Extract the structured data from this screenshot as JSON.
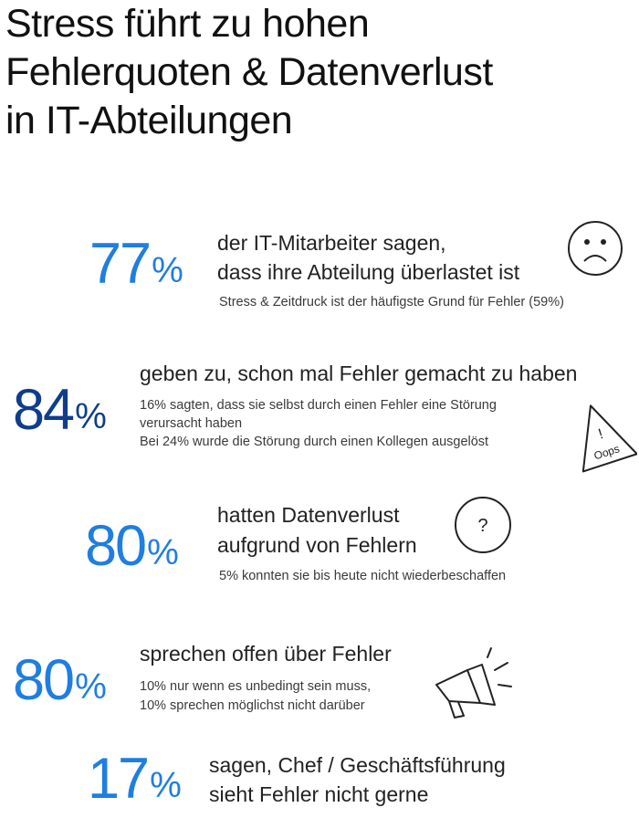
{
  "title": {
    "line1": "Stress führt zu hohen",
    "line2": "Fehlerquoten & Datenverlust",
    "line3": "in IT-Abteilungen"
  },
  "colors": {
    "blue": "#1f7ee0",
    "navy": "#0f3d8c",
    "text": "#222222"
  },
  "stats": [
    {
      "number": "77",
      "sign": "%",
      "headline": [
        "der IT-Mitarbeiter sagen,",
        "dass ihre Abteilung überlastet ist"
      ],
      "details": [
        "Stress & Zeitdruck ist der häufigste Grund für Fehler (59%)"
      ],
      "icon": "sad-face-icon"
    },
    {
      "number": "84",
      "sign": "%",
      "headline": [
        "geben zu, schon mal Fehler gemacht zu haben"
      ],
      "details": [
        "16% sagten, dass sie selbst durch einen Fehler eine Störung",
        "verursacht haben",
        "Bei 24% wurde die Störung durch einen Kollegen ausgelöst"
      ],
      "icon": "warning-triangle-icon",
      "icon_text": "Oops",
      "icon_mark": "!"
    },
    {
      "number": "80",
      "sign": "%",
      "headline": [
        "hatten Datenverlust",
        "aufgrund von Fehlern"
      ],
      "details": [
        "5% konnten sie bis heute nicht wiederbeschaffen"
      ],
      "icon": "question-circle-icon",
      "icon_mark": "?"
    },
    {
      "number": "80",
      "sign": "%",
      "headline": [
        "sprechen offen über Fehler"
      ],
      "details": [
        "10% nur wenn es unbedingt sein muss,",
        "10% sprechen möglichst nicht darüber"
      ],
      "icon": "megaphone-icon"
    },
    {
      "number": "17",
      "sign": "%",
      "headline": [
        "sagen, Chef / Geschäftsführung",
        "sieht Fehler nicht gerne"
      ],
      "details": []
    }
  ]
}
